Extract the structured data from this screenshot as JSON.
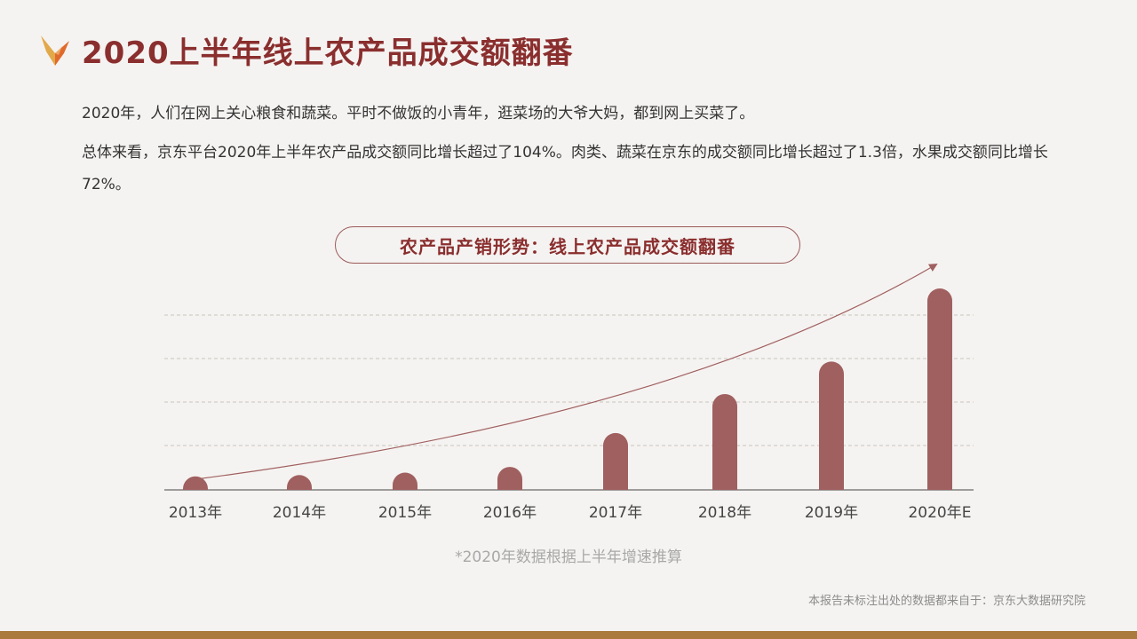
{
  "header": {
    "title": "2020上半年线上农产品成交额翻番"
  },
  "intro": {
    "paragraph1": "2020年，人们在网上关心粮食和蔬菜。平时不做饭的小青年，逛菜场的大爷大妈，都到网上买菜了。",
    "paragraph2": "总体来看，京东平台2020年上半年农产品成交额同比增长超过了104%。肉类、蔬菜在京东的成交额同比增长超过了1.3倍，水果成交额同比增长72%。"
  },
  "chart_header": {
    "label": "农产品产销形势：线上农产品成交额翻番"
  },
  "chart_data": {
    "type": "bar",
    "title": "",
    "xlabel": "",
    "ylabel": "",
    "categories": [
      "2013年",
      "2014年",
      "2015年",
      "2016年",
      "2017年",
      "2018年",
      "2019年",
      "2020年E"
    ],
    "values": [
      0.7,
      1.5,
      3.0,
      6.5,
      17.5,
      29.5,
      39.5,
      62.0
    ],
    "ylim": [
      0,
      62
    ],
    "grid": true,
    "trend_arrow": true,
    "bar_color": "#a06060"
  },
  "footnote": {
    "text": "*2020年数据根据上半年增速推算"
  },
  "source": {
    "text": "本报告未标注出处的数据都来自于：京东大数据研究院"
  },
  "colors": {
    "title": "#8a2e2e",
    "bar": "#a06060",
    "bottom_bar": "#a97a3c",
    "logo_gold": "#e2a94a",
    "logo_orange": "#e06a2c"
  },
  "icons": {
    "logo": "brand-leaf-logo"
  }
}
